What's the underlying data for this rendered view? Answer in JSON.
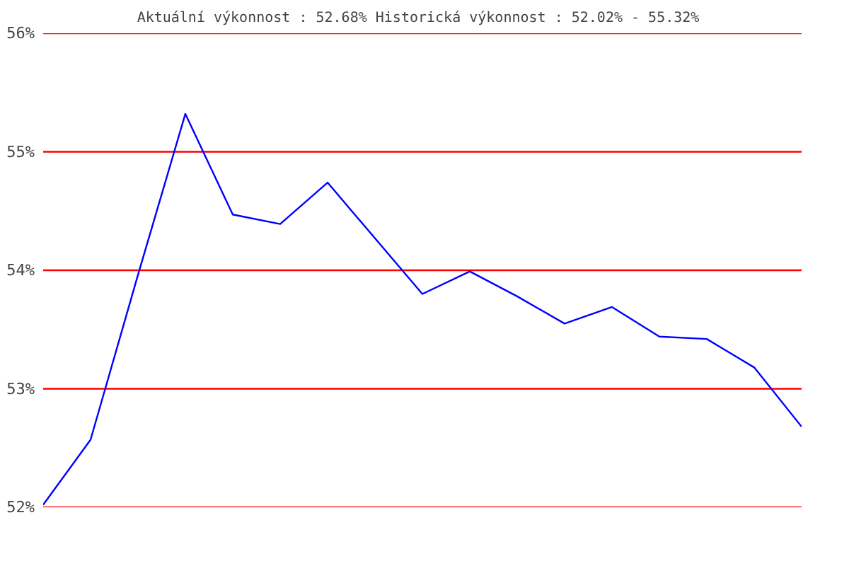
{
  "chart_data": {
    "type": "line",
    "title": "Aktuální výkonnost : 52.68%  Historická výkonnost : 52.02% - 55.32%",
    "categories": [
      null,
      null,
      null,
      null,
      null,
      null,
      null,
      null,
      null,
      null,
      null,
      null,
      null,
      null,
      null,
      null,
      null
    ],
    "series": [
      {
        "color": "#0000ff",
        "values": [
          52.02,
          52.57,
          53.96,
          55.32,
          54.47,
          54.39,
          54.74,
          54.27,
          53.8,
          53.99,
          53.78,
          53.55,
          53.69,
          53.44,
          53.42,
          53.18,
          52.68
        ]
      }
    ],
    "ylim": [
      52,
      56
    ],
    "yticks": [
      {
        "value": 52,
        "label": "52%"
      },
      {
        "value": 53,
        "label": "53%"
      },
      {
        "value": 54,
        "label": "54%"
      },
      {
        "value": 55,
        "label": "55%"
      },
      {
        "value": 56,
        "label": "56%"
      }
    ],
    "grid": "y",
    "marker": "none",
    "line_style": "solid"
  }
}
